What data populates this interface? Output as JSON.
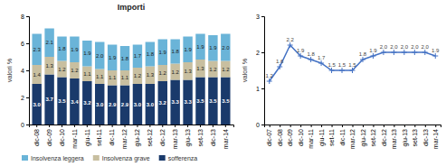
{
  "chart_data": [
    {
      "type": "bar",
      "title": "Importi",
      "ylabel": "valori %",
      "stacked": true,
      "data_labels": true,
      "legend": "bottom",
      "grid": false,
      "categories": [
        "dic-08",
        "dic-09",
        "dic-10",
        "mar-11",
        "giu-11",
        "set-11",
        "dic-11",
        "mar-12",
        "giu-12",
        "set-12",
        "dic-12",
        "mar-13",
        "giu-13",
        "set-13",
        "dic-13",
        "mar-14"
      ],
      "series": [
        {
          "name": "sofferenza",
          "color": "#1a3a6b",
          "values": [
            3.0,
            3.7,
            3.5,
            3.4,
            3.2,
            3.0,
            2.9,
            2.9,
            3.0,
            3.0,
            3.2,
            3.3,
            3.3,
            3.5,
            3.5,
            3.5
          ],
          "value_labels": [
            "3.0",
            "3.7",
            "3.5",
            "3.4",
            "3.2",
            "3.0",
            "2.9",
            "2.9",
            "3.0",
            "3.0",
            "3.2",
            "3.3",
            "3.3",
            "3.5",
            "3.5",
            "3.5"
          ]
        },
        {
          "name": "Insolvenza grave",
          "color": "#c8bfa0",
          "values": [
            1.4,
            1.3,
            1.2,
            1.2,
            1.1,
            1.1,
            1.1,
            1.1,
            1.2,
            1.3,
            1.2,
            1.2,
            1.3,
            1.3,
            1.2,
            1.2
          ],
          "value_labels": [
            "1.4",
            "1.3",
            "1.2",
            "1.2",
            "1.1",
            "1.1",
            "1.1",
            "1.1",
            "1.2",
            "1.3",
            "1.2",
            "1.2",
            "1.3",
            "1.3",
            "1.2",
            "1.2"
          ]
        },
        {
          "name": "Insolvenza leggera",
          "color": "#6ab4d8",
          "values": [
            2.3,
            2.1,
            1.8,
            1.9,
            1.9,
            2.0,
            1.9,
            1.8,
            1.7,
            1.8,
            1.9,
            1.8,
            1.9,
            1.9,
            1.9,
            2.0
          ],
          "value_labels": [
            "2.3",
            "2.1",
            "1.8",
            "1.9",
            "1.9",
            "2.0",
            "1.9",
            "1.8",
            "1.7",
            "1.8",
            "1.9",
            "1.8",
            "1.9",
            "1.9",
            "1.9",
            "2.0"
          ]
        }
      ],
      "ylim": [
        0,
        8
      ],
      "yticks": [
        0,
        2,
        4,
        6,
        8
      ]
    },
    {
      "type": "line",
      "ylabel": "valori %",
      "data_labels": true,
      "marker": "+",
      "color": "#4472c4",
      "grid": false,
      "categories": [
        "dic-07",
        "dic-08",
        "dic-09",
        "dic-10",
        "mar-11",
        "giu-11",
        "set-11",
        "dic-11",
        "mar-12",
        "giu-12",
        "set-12",
        "dic-12",
        "mar-13",
        "giu-13",
        "set-13",
        "dic-13",
        "mar-14"
      ],
      "values": [
        1.2,
        1.6,
        2.2,
        1.9,
        1.8,
        1.7,
        1.5,
        1.5,
        1.5,
        1.8,
        1.9,
        2.0,
        2.0,
        2.0,
        2.0,
        2.0,
        1.9
      ],
      "value_labels": [
        "1.2",
        "1.6",
        "2.2",
        "1.9",
        "1.8",
        "1.7",
        "1.5",
        "1.5",
        "1.5",
        "1.8",
        "1.9",
        "2.0",
        "2.0",
        "2.0",
        "2.0",
        "2.0",
        "1.9"
      ],
      "ylim": [
        0,
        3
      ],
      "yticks": [
        0,
        1,
        2,
        3
      ]
    }
  ]
}
